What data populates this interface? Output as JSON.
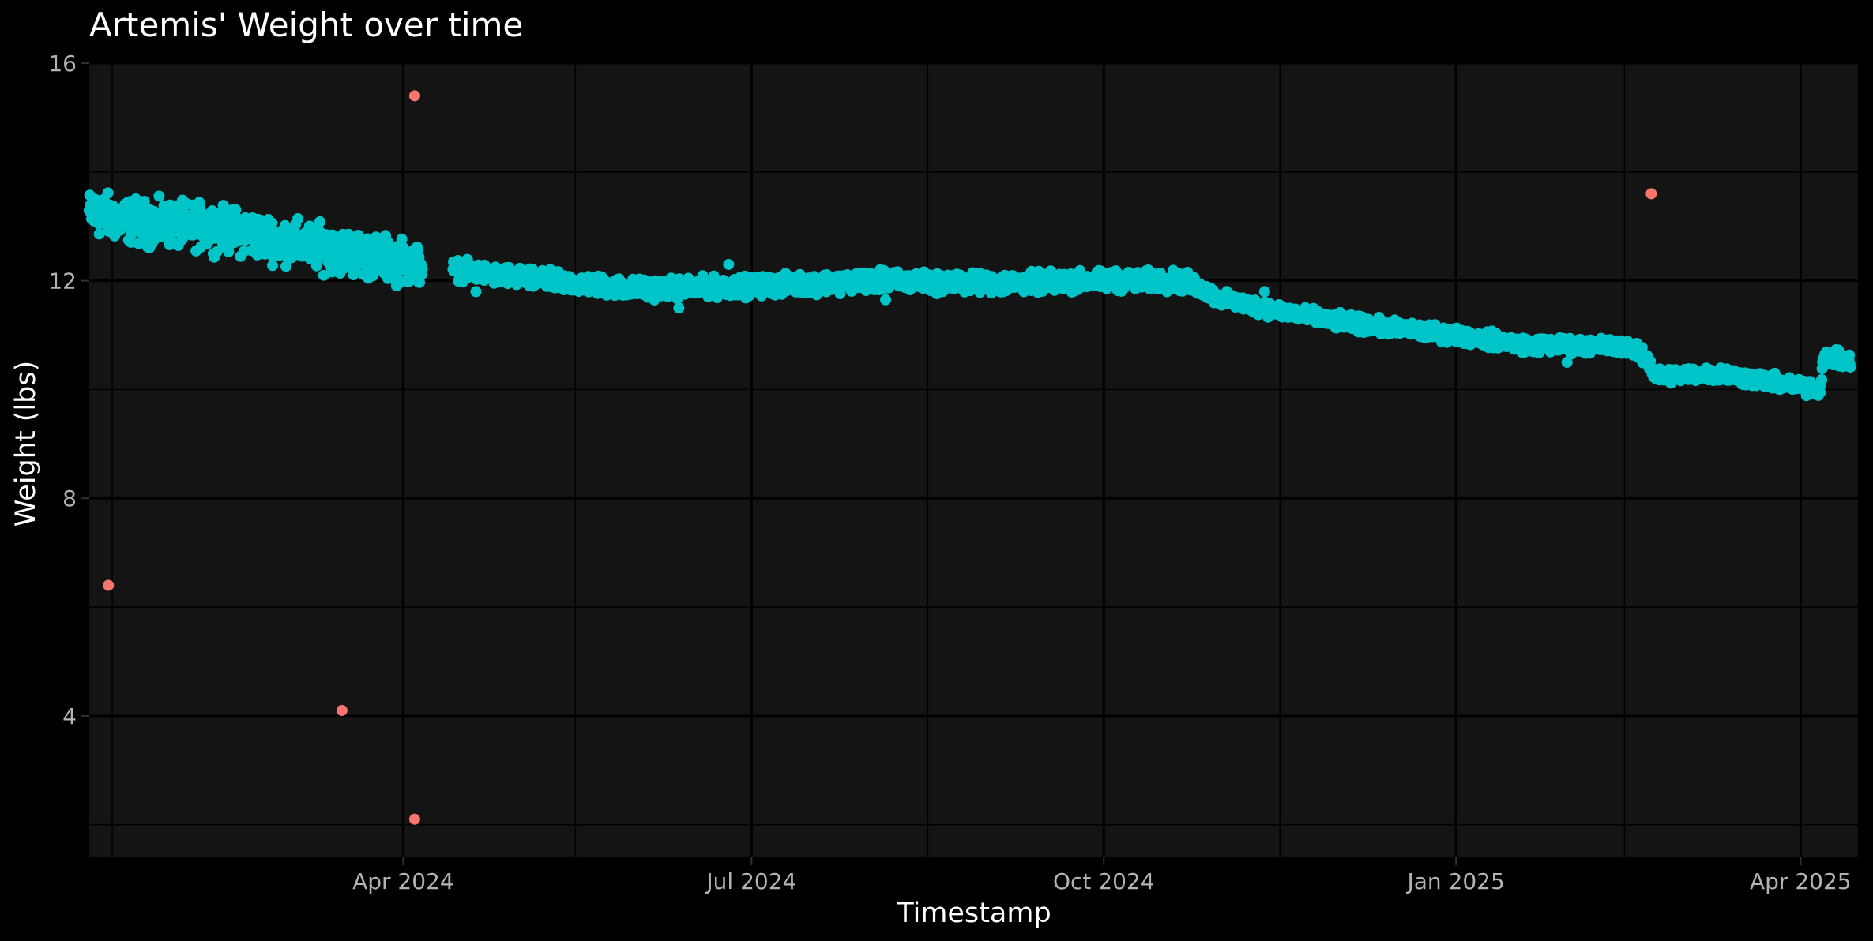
{
  "chart_data": {
    "type": "scatter",
    "title": "Artemis' Weight over time",
    "xlabel": "Timestamp",
    "ylabel": "Weight (lbs)",
    "x_type": "date",
    "xlim": [
      "2024-01-10",
      "2025-04-16"
    ],
    "ylim": [
      1.4,
      16.0
    ],
    "x_ticks": [
      {
        "date": "2024-04-01",
        "label": "Apr 2024"
      },
      {
        "date": "2024-07-01",
        "label": "Jul 2024"
      },
      {
        "date": "2024-10-01",
        "label": "Oct 2024"
      },
      {
        "date": "2025-01-01",
        "label": "Jan 2025"
      },
      {
        "date": "2025-04-01",
        "label": "Apr 2025"
      }
    ],
    "x_minor_ticks": [
      "2024-01-16",
      "2024-05-16",
      "2024-08-16",
      "2024-11-16",
      "2025-02-14"
    ],
    "y_ticks": [
      4,
      8,
      12,
      16
    ],
    "y_minor_ticks": [
      2,
      6,
      10,
      14
    ],
    "grid": true,
    "legend": "none",
    "colors": {
      "background": "#000000",
      "panel": "#141414",
      "grid": "#000000",
      "text": "#ffffff",
      "tick_text": "#b3b3b3",
      "normal": "#00c5c8",
      "outlier": "#f8766d"
    },
    "trend_series": {
      "anchors": [
        [
          "2024-01-10",
          13.25
        ],
        [
          "2024-01-25",
          13.05
        ],
        [
          "2024-02-10",
          13.0
        ],
        [
          "2024-02-25",
          12.8
        ],
        [
          "2024-03-15",
          12.55
        ],
        [
          "2024-04-05",
          12.3
        ],
        [
          "2024-04-15",
          12.2
        ],
        [
          "2024-05-01",
          12.05
        ],
        [
          "2024-06-01",
          11.85
        ],
        [
          "2024-07-01",
          11.9
        ],
        [
          "2024-08-01",
          12.0
        ],
        [
          "2024-09-01",
          11.95
        ],
        [
          "2024-10-01",
          12.0
        ],
        [
          "2024-10-20",
          12.0
        ],
        [
          "2024-10-25",
          11.9
        ],
        [
          "2024-11-01",
          11.65
        ],
        [
          "2024-12-01",
          11.25
        ],
        [
          "2025-01-01",
          11.0
        ],
        [
          "2025-01-20",
          10.82
        ],
        [
          "2025-02-15",
          10.8
        ],
        [
          "2025-02-20",
          10.55
        ],
        [
          "2025-02-22",
          10.25
        ],
        [
          "2025-03-10",
          10.3
        ],
        [
          "2025-04-06",
          10.0
        ],
        [
          "2025-04-07",
          10.6
        ],
        [
          "2025-04-15",
          10.5
        ]
      ]
    },
    "series": [
      {
        "values": [
          {
            "x": "2024-01-15",
            "y": 6.4
          },
          {
            "x": "2024-03-16",
            "y": 4.1
          },
          {
            "x": "2024-04-04",
            "y": 2.1
          },
          {
            "x": "2024-04-04",
            "y": 15.4
          },
          {
            "x": "2025-02-21",
            "y": 13.6
          }
        ]
      },
      {
        "values": [
          {
            "x": "2024-04-20",
            "y": 11.8
          },
          {
            "x": "2024-06-12",
            "y": 11.5
          },
          {
            "x": "2024-06-25",
            "y": 12.3
          },
          {
            "x": "2024-08-05",
            "y": 11.65
          },
          {
            "x": "2024-11-12",
            "y": 11.8
          },
          {
            "x": "2025-01-30",
            "y": 10.5
          }
        ]
      }
    ]
  }
}
